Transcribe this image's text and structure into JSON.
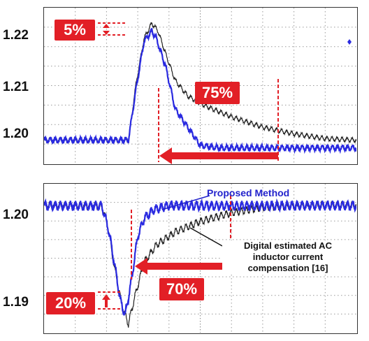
{
  "chart_data": [
    {
      "type": "line",
      "panel": "top",
      "yticks": [
        "1.22",
        "1.21",
        "1.20"
      ],
      "ylim": [
        1.1955,
        1.2255
      ],
      "xlim": [
        0,
        10
      ],
      "grid": true,
      "series": [
        {
          "color": "#2a2ae0",
          "x": [
            0,
            2.7,
            2.95,
            3.2,
            3.45,
            3.6,
            3.9,
            4.2,
            4.6,
            5.0,
            5.6,
            6.5,
            8,
            10
          ],
          "y": [
            1.2,
            1.2,
            1.21,
            1.219,
            1.221,
            1.2195,
            1.214,
            1.206,
            1.2025,
            1.199,
            1.1985,
            1.1985,
            1.1985,
            1.1985
          ]
        },
        {
          "color": "#222222",
          "x": [
            0,
            2.7,
            2.95,
            3.2,
            3.45,
            3.65,
            3.9,
            4.2,
            4.6,
            5.2,
            6,
            7,
            8,
            9,
            10
          ],
          "y": [
            1.2,
            1.2,
            1.211,
            1.2195,
            1.2225,
            1.221,
            1.2165,
            1.2115,
            1.2085,
            1.2065,
            1.2045,
            1.2025,
            1.2012,
            1.2003,
            1.2
          ]
        }
      ],
      "annotations": {
        "overshoot": "5%",
        "recovery": "75%"
      }
    },
    {
      "type": "line",
      "panel": "bottom",
      "yticks": [
        "1.20",
        "1.19"
      ],
      "ylim": [
        1.1855,
        1.2025
      ],
      "xlim": [
        0,
        10
      ],
      "grid": true,
      "series": [
        {
          "name": "Proposed Method",
          "color": "#2a2ae0",
          "x": [
            0,
            1.85,
            2.05,
            2.25,
            2.45,
            2.6,
            2.8,
            3.0,
            3.2,
            3.5,
            4.0,
            10
          ],
          "y": [
            1.2,
            1.2,
            1.1975,
            1.1935,
            1.189,
            1.1875,
            1.1915,
            1.1965,
            1.1985,
            1.1995,
            1.2,
            1.2
          ]
        },
        {
          "name": "Digital estimated AC inductor current compensation [16]",
          "color": "#222222",
          "x": [
            0,
            1.85,
            2.05,
            2.25,
            2.5,
            2.7,
            2.9,
            3.2,
            3.6,
            4.2,
            5,
            6,
            7,
            8,
            10
          ],
          "y": [
            1.2,
            1.2,
            1.1975,
            1.193,
            1.1885,
            1.1865,
            1.1895,
            1.1935,
            1.1955,
            1.197,
            1.1982,
            1.1992,
            1.1998,
            1.2,
            1.2
          ]
        }
      ],
      "annotations": {
        "proposed_label": "Proposed Method",
        "digital_label": "Digital estimated AC inductor current compensation [16]",
        "undershoot": "20%",
        "recovery": "70%"
      }
    }
  ],
  "labels": {
    "digital_line1": "Digital estimated AC",
    "digital_line2": "inductor current",
    "digital_line3": "compensation [16]"
  },
  "colors": {
    "badge": "#e21f26",
    "blue_trace": "#2a2ae0",
    "black_trace": "#222222"
  }
}
